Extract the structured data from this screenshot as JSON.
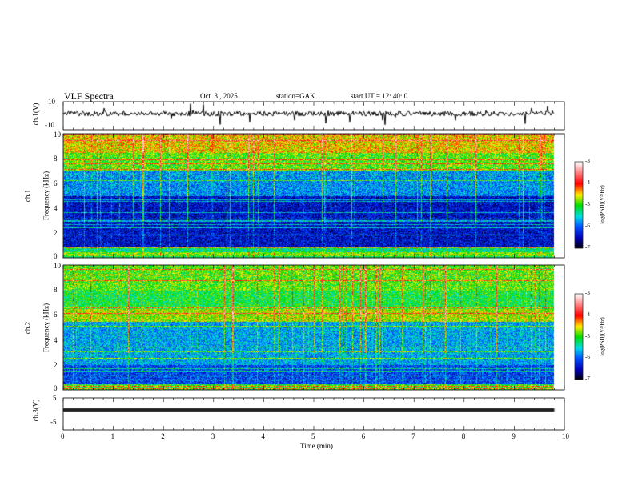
{
  "header": {
    "title": "VLF  Spectra",
    "date": "Oct. 3   , 2025",
    "station": "station=GAK",
    "start": "start  UT  =    12: 40: 0"
  },
  "chart_data": {
    "type": "heatmap",
    "xlabel": "Time  (min)",
    "xlim": [
      0,
      10
    ],
    "xticks": [
      "0",
      "1",
      "2",
      "3",
      "4",
      "5",
      "6",
      "7",
      "8",
      "9",
      "10"
    ],
    "data_end_min": 9.8,
    "panels": [
      {
        "name": "ch1-waveform",
        "ylabel": "ch.1(V)",
        "ylim": [
          -10,
          10
        ],
        "yticks": [
          "10",
          "-10"
        ],
        "type": "line",
        "mean": 0
      },
      {
        "name": "ch1-spectrogram",
        "ylabel_channel": "ch.1",
        "ylabel": "Frequency  (kHz)",
        "ylim": [
          0,
          10
        ],
        "yticks": [
          "10",
          "8",
          "6",
          "4",
          "2",
          "0"
        ],
        "colorbar": {
          "label": "log(PSD)(V²/Hz)",
          "range": [
            -7,
            -3
          ],
          "ticks": [
            "-3",
            "-4",
            "-5",
            "-6",
            "-7"
          ]
        }
      },
      {
        "name": "ch2-spectrogram",
        "ylabel_channel": "ch.2",
        "ylabel": "Frequency  (kHz)",
        "ylim": [
          0,
          10
        ],
        "yticks": [
          "10",
          "8",
          "6",
          "4",
          "2",
          "0"
        ],
        "colorbar": {
          "label": "log(PSD)(V²/Hz)",
          "range": [
            -7,
            -3
          ],
          "ticks": [
            "-3",
            "-4",
            "-5",
            "-6",
            "-7"
          ]
        }
      },
      {
        "name": "ch3-waveform",
        "ylabel": "ch.3(V)",
        "ylim": [
          -5,
          5
        ],
        "yticks": [
          "5",
          "-5"
        ],
        "type": "line",
        "mean": -1
      }
    ]
  }
}
